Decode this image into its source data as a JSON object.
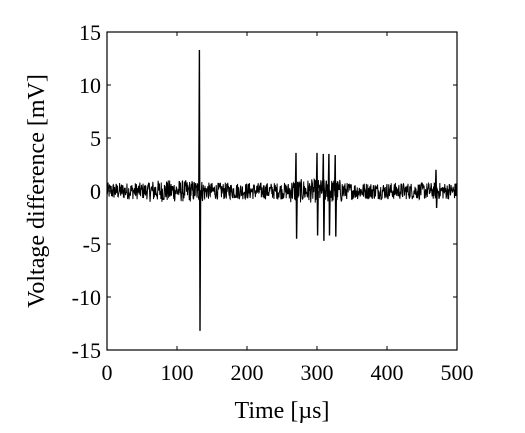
{
  "chart_data": {
    "type": "line",
    "title": "",
    "xlabel": "Time [µs]",
    "ylabel": "Voltage difference [mV]",
    "xlim": [
      0,
      500
    ],
    "ylim": [
      -15,
      15
    ],
    "xticks": [
      0,
      100,
      200,
      300,
      400,
      500
    ],
    "yticks": [
      -15,
      -10,
      -5,
      0,
      5,
      10,
      15
    ],
    "grid": false,
    "legend": "none",
    "line_color": "#000000",
    "baseline_noise_amplitude_mV": 0.8,
    "spikes": [
      {
        "x": 132,
        "y_max": 13.3,
        "y_min": -13.2
      },
      {
        "x": 270,
        "y_max": 3.6,
        "y_min": -4.5
      },
      {
        "x": 300,
        "y_max": 3.6,
        "y_min": -4.2
      },
      {
        "x": 309,
        "y_max": 3.5,
        "y_min": -4.7
      },
      {
        "x": 317,
        "y_max": 3.5,
        "y_min": -4.2
      },
      {
        "x": 326,
        "y_max": 3.4,
        "y_min": -4.3
      },
      {
        "x": 470,
        "y_max": 2.0,
        "y_min": -1.6
      }
    ]
  }
}
